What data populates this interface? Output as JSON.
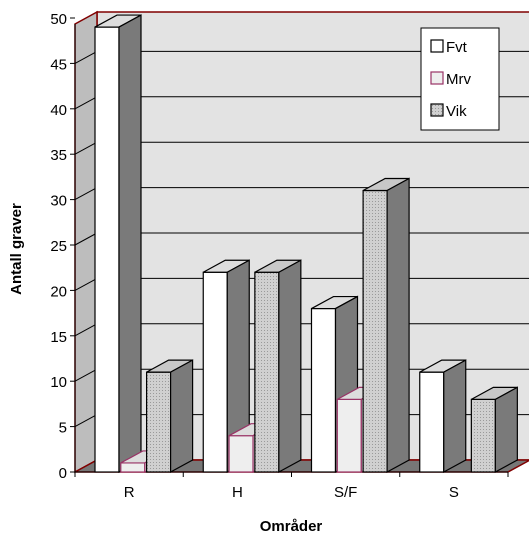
{
  "chart_data": {
    "type": "bar",
    "title": "",
    "xlabel": "Områder",
    "ylabel": "Antall graver",
    "categories": [
      "R",
      "H",
      "S/F",
      "S"
    ],
    "series": [
      {
        "name": "Fvt",
        "values": [
          49,
          22,
          18,
          11
        ],
        "color": "#ffffff"
      },
      {
        "name": "Mrv",
        "values": [
          1,
          4,
          8,
          0
        ],
        "color": "#eeeeee"
      },
      {
        "name": "Vik",
        "values": [
          11,
          22,
          31,
          8
        ],
        "color": "#d0d0d0"
      }
    ],
    "ylim": [
      0,
      50
    ],
    "yticks": [
      0,
      5,
      10,
      15,
      20,
      25,
      30,
      35,
      40,
      45,
      50
    ],
    "grid": true,
    "legend_position": "top-right",
    "style": "3d",
    "colors": {
      "wall": "#e3e3e3",
      "floor": "#777777",
      "frame": "#800000",
      "side": "#7a7a7a",
      "mrv_border": "#993366"
    }
  }
}
